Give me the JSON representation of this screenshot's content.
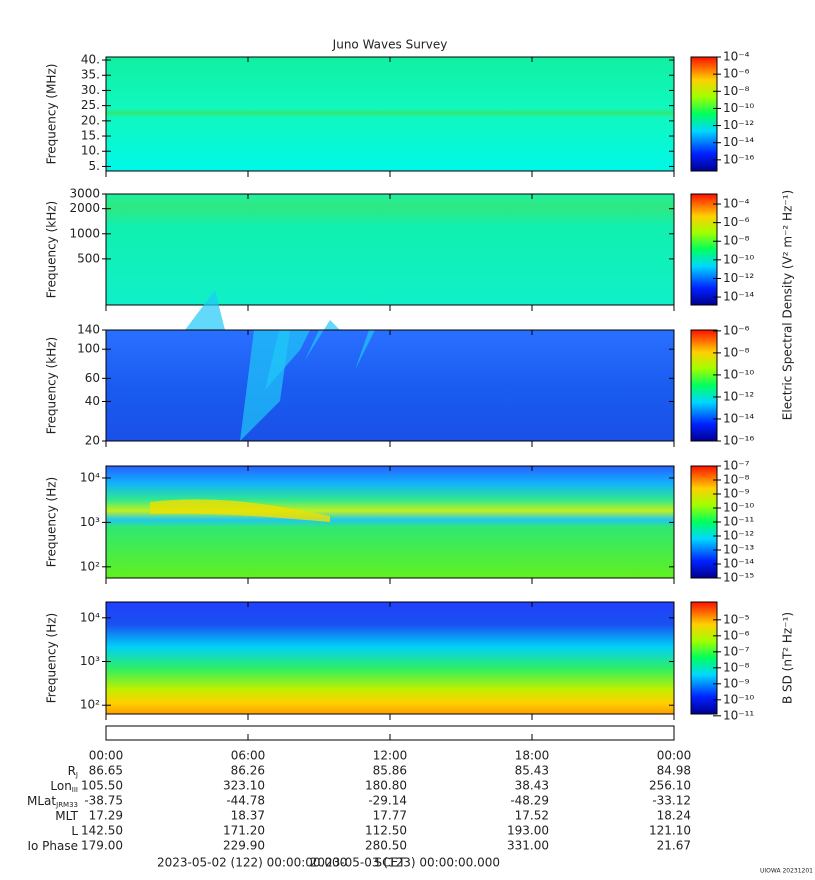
{
  "chart_data": [
    {
      "type": "spectrogram",
      "title": "Juno Waves Survey",
      "ylabel": "Frequency (MHz)",
      "yscale": "linear",
      "ylim": [
        3.5,
        41
      ],
      "yticks": [
        {
          "value": 5,
          "label": "5."
        },
        {
          "value": 10,
          "label": "10."
        },
        {
          "value": 15,
          "label": "15."
        },
        {
          "value": 20,
          "label": "20."
        },
        {
          "value": 25,
          "label": "25."
        },
        {
          "value": 30,
          "label": "30."
        },
        {
          "value": 35,
          "label": "35."
        },
        {
          "value": 40,
          "label": "40."
        }
      ],
      "clim": [
        5e-18,
        0.0001
      ],
      "cticks": [
        {
          "value": 0.0001,
          "label": "10⁻⁴"
        },
        {
          "value": 1e-06,
          "label": "10⁻⁶"
        },
        {
          "value": 1e-08,
          "label": "10⁻⁸"
        },
        {
          "value": 1e-10,
          "label": "10⁻¹⁰"
        },
        {
          "value": 1e-12,
          "label": "10⁻¹²"
        },
        {
          "value": 1e-14,
          "label": "10⁻¹⁴"
        },
        {
          "value": 1e-16,
          "label": "10⁻¹⁶"
        }
      ]
    },
    {
      "type": "spectrogram",
      "ylabel": "Frequency (kHz)",
      "yscale": "log",
      "ylim": [
        140,
        3000
      ],
      "yticks": [
        500,
        1000,
        2000,
        3000
      ],
      "clim": [
        1.4e-15,
        0.0012
      ],
      "cticks": [
        {
          "value": 0.0001,
          "label": "10⁻⁴"
        },
        {
          "value": 1e-06,
          "label": "10⁻⁶"
        },
        {
          "value": 1e-08,
          "label": "10⁻⁸"
        },
        {
          "value": 1e-10,
          "label": "10⁻¹⁰"
        },
        {
          "value": 1e-12,
          "label": "10⁻¹²"
        },
        {
          "value": 1e-14,
          "label": "10⁻¹⁴"
        }
      ]
    },
    {
      "type": "spectrogram",
      "ylabel": "Frequency (kHz)",
      "yscale": "log",
      "ylim": [
        20,
        140
      ],
      "yticks": [
        20,
        40,
        60,
        100,
        140
      ],
      "clim": [
        1e-16,
        1.2e-06
      ],
      "colorbar_label": "Electric Spectral Density (V² m⁻² Hz⁻¹)",
      "cticks": [
        {
          "value": 1e-06,
          "label": "10⁻⁶"
        },
        {
          "value": 1e-08,
          "label": "10⁻⁸"
        },
        {
          "value": 1e-10,
          "label": "10⁻¹⁰"
        },
        {
          "value": 1e-12,
          "label": "10⁻¹²"
        },
        {
          "value": 1e-14,
          "label": "10⁻¹⁴"
        },
        {
          "value": 1e-16,
          "label": "10⁻¹⁶"
        }
      ]
    },
    {
      "type": "spectrogram",
      "ylabel": "Frequency (Hz)",
      "yscale": "log",
      "ylim": [
        56,
        18600
      ],
      "yticks": [
        {
          "value": 100,
          "label": "10²"
        },
        {
          "value": 1000,
          "label": "10³"
        },
        {
          "value": 10000,
          "label": "10⁴"
        }
      ],
      "clim": [
        1e-15,
        1e-07
      ],
      "cticks": [
        {
          "value": 1e-07,
          "label": "10⁻⁷"
        },
        {
          "value": 1e-08,
          "label": "10⁻⁸"
        },
        {
          "value": 1e-09,
          "label": "10⁻⁹"
        },
        {
          "value": 1e-10,
          "label": "10⁻¹⁰"
        },
        {
          "value": 1e-11,
          "label": "10⁻¹¹"
        },
        {
          "value": 1e-12,
          "label": "10⁻¹²"
        },
        {
          "value": 1e-13,
          "label": "10⁻¹³"
        },
        {
          "value": 1e-14,
          "label": "10⁻¹⁴"
        },
        {
          "value": 1e-15,
          "label": "10⁻¹⁵"
        }
      ]
    },
    {
      "type": "spectrogram",
      "ylabel": "Frequency (Hz)",
      "yscale": "log",
      "ylim": [
        63,
        23000
      ],
      "yticks": [
        {
          "value": 100,
          "label": "10²"
        },
        {
          "value": 1000,
          "label": "10³"
        },
        {
          "value": 10000,
          "label": "10⁴"
        }
      ],
      "clim": [
        1.3e-11,
        0.00013
      ],
      "colorbar_label": "B SD (nT² Hz⁻¹)",
      "cticks": [
        {
          "value": 1e-05,
          "label": "10⁻⁵"
        },
        {
          "value": 1e-06,
          "label": "10⁻⁶"
        },
        {
          "value": 1e-07,
          "label": "10⁻⁷"
        },
        {
          "value": 1e-08,
          "label": "10⁻⁸"
        },
        {
          "value": 1e-09,
          "label": "10⁻⁹"
        },
        {
          "value": 1e-10,
          "label": "10⁻¹⁰"
        },
        {
          "value": 1e-11,
          "label": "10⁻¹¹"
        }
      ]
    }
  ],
  "time_axis": {
    "xlim": [
      0,
      24
    ],
    "xticks": [
      {
        "value": 0,
        "label": "00:00"
      },
      {
        "value": 6,
        "label": "06:00"
      },
      {
        "value": 12,
        "label": "12:00"
      },
      {
        "value": 18,
        "label": "18:00"
      },
      {
        "value": 24,
        "label": "00:00"
      }
    ]
  },
  "ephemeris": [
    {
      "label": "R",
      "sub": "J",
      "values": [
        "86.65",
        "86.26",
        "85.86",
        "85.43",
        "84.98"
      ]
    },
    {
      "label": "Lon",
      "sub": "III",
      "values": [
        "105.50",
        "323.10",
        "180.80",
        "38.43",
        "256.10"
      ]
    },
    {
      "label": "MLat",
      "sub": "JRM33",
      "values": [
        "-38.75",
        "-44.78",
        "-29.14",
        "-48.29",
        "-33.12"
      ]
    },
    {
      "label": "MLT",
      "values": [
        "17.29",
        "18.37",
        "17.77",
        "17.52",
        "18.24"
      ]
    },
    {
      "label": "L",
      "values": [
        "142.50",
        "171.20",
        "112.50",
        "193.00",
        "121.10"
      ]
    },
    {
      "label": "Io Phase",
      "values": [
        "179.00",
        "229.90",
        "280.50",
        "331.00",
        "21.67"
      ]
    }
  ],
  "footer": {
    "start": "2023-05-02 (122) 00:00:00.000",
    "center": "SCET",
    "end": "2023-05-03 (123) 00:00:00.000",
    "stamp": "UIOWA 20231201"
  }
}
